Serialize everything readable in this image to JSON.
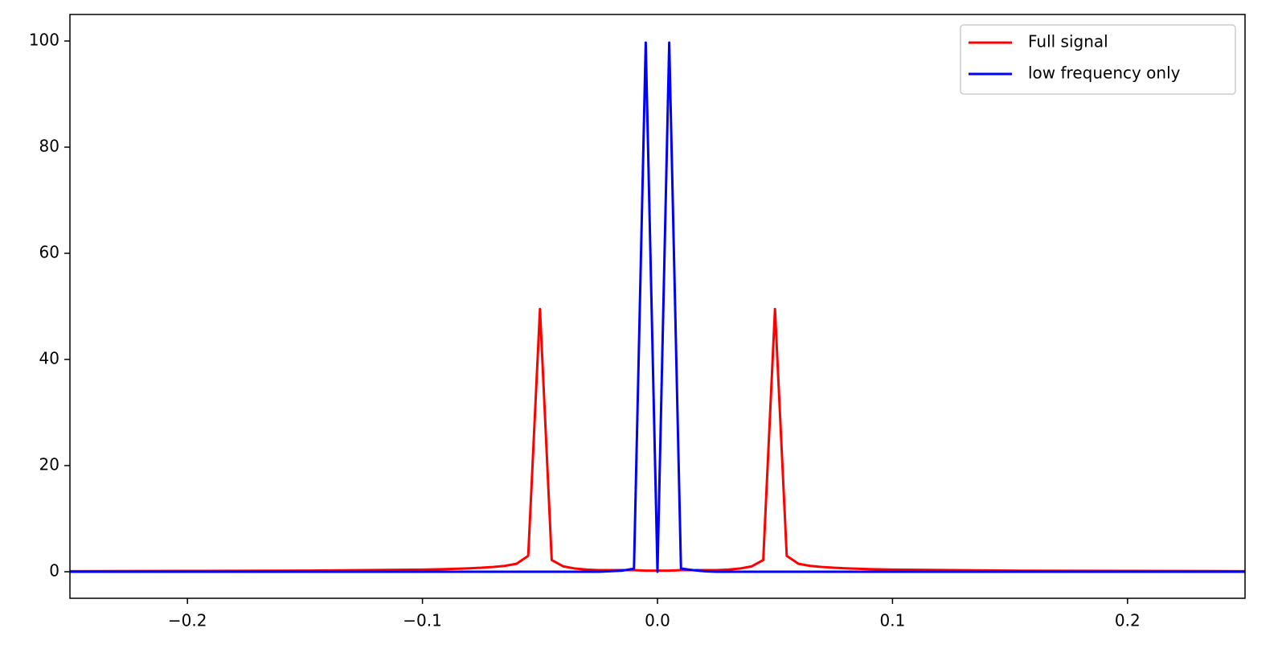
{
  "chart_data": {
    "type": "line",
    "x": [
      -0.25,
      -0.2,
      -0.15,
      -0.1,
      -0.09,
      -0.08,
      -0.075,
      -0.07,
      -0.065,
      -0.06,
      -0.055,
      -0.05,
      -0.045,
      -0.04,
      -0.035,
      -0.03,
      -0.025,
      -0.02,
      -0.015,
      -0.01,
      -0.005,
      0,
      0.005,
      0.01,
      0.015,
      0.02,
      0.025,
      0.03,
      0.035,
      0.04,
      0.045,
      0.05,
      0.055,
      0.06,
      0.065,
      0.07,
      0.075,
      0.08,
      0.09,
      0.1,
      0.15,
      0.2,
      0.25
    ],
    "series": [
      {
        "name": "Full signal",
        "color": "#ff0000",
        "values": [
          0.1,
          0.15,
          0.2,
          0.4,
          0.5,
          0.65,
          0.75,
          0.9,
          1.1,
          1.5,
          3.0,
          49.5,
          2.2,
          1.0,
          0.6,
          0.4,
          0.3,
          0.3,
          0.3,
          0.3,
          0.2,
          0.2,
          0.2,
          0.3,
          0.3,
          0.3,
          0.3,
          0.4,
          0.6,
          1.0,
          2.2,
          49.5,
          3.0,
          1.5,
          1.1,
          0.9,
          0.75,
          0.65,
          0.5,
          0.4,
          0.2,
          0.15,
          0.1
        ]
      },
      {
        "name": "low frequency only",
        "color": "#0000ff",
        "values": [
          0,
          0,
          0,
          0,
          0,
          0,
          0,
          0,
          0,
          0,
          0,
          0,
          0,
          0,
          0,
          0,
          0,
          0.1,
          0.2,
          0.6,
          99.7,
          0,
          99.7,
          0.6,
          0.3,
          0.1,
          0,
          0,
          0,
          0,
          0,
          0,
          0,
          0,
          0,
          0,
          0,
          0,
          0,
          0,
          0,
          0,
          0
        ]
      }
    ],
    "xlim": [
      -0.25,
      0.25
    ],
    "xticks": [
      {
        "value": -0.2,
        "label": "−0.2"
      },
      {
        "value": -0.1,
        "label": "−0.1"
      },
      {
        "value": 0,
        "label": "0.0"
      },
      0.1,
      0.2
    ],
    "ylim": [
      -5,
      105
    ],
    "yticks": [
      0,
      20,
      40,
      60,
      80,
      100
    ],
    "legend": "upper right"
  }
}
